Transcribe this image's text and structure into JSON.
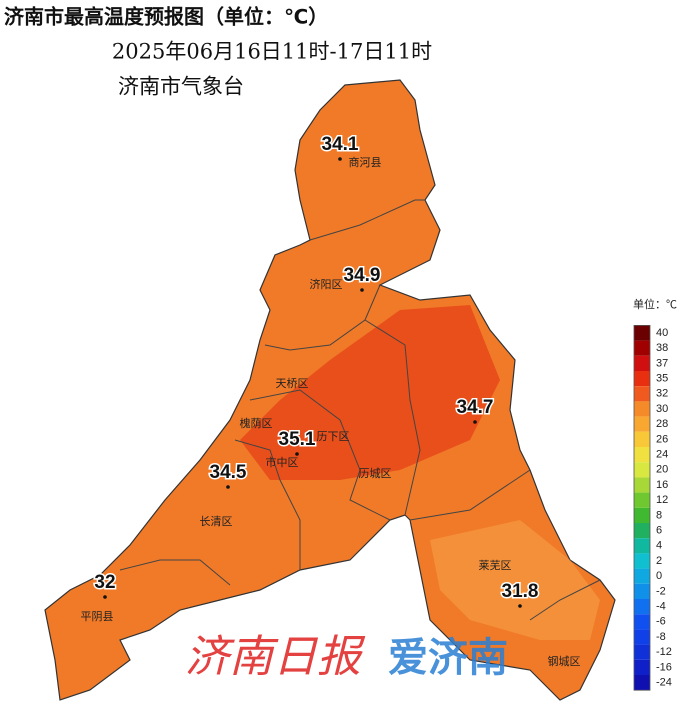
{
  "header": {
    "title": "济南市最高温度预报图（单位：℃）",
    "period": "2025年06月16日11时-17日11时",
    "issuer": "济南市气象台"
  },
  "temperatures": [
    34.1,
    34.9,
    34.7,
    35.1,
    34.5,
    32,
    31.8
  ],
  "place_labels": [
    "商河县",
    "济阳区",
    "天桥区",
    "槐荫区",
    "历下区",
    "市中区",
    "历城区",
    "长清区",
    "平阴县",
    "莱芜区",
    "钢城区"
  ],
  "legend": {
    "unit": "单位：℃",
    "levels": [
      {
        "value": 40,
        "color": "#6b0000"
      },
      {
        "value": 38,
        "color": "#a00000"
      },
      {
        "value": 37,
        "color": "#d01010"
      },
      {
        "value": 35,
        "color": "#e83010"
      },
      {
        "value": 32,
        "color": "#f05a1e"
      },
      {
        "value": 30,
        "color": "#f58a28"
      },
      {
        "value": 28,
        "color": "#f8a830"
      },
      {
        "value": 26,
        "color": "#f8c838"
      },
      {
        "value": 24,
        "color": "#f0e040"
      },
      {
        "value": 20,
        "color": "#d8e840"
      },
      {
        "value": 16,
        "color": "#a8d838"
      },
      {
        "value": 12,
        "color": "#70c830"
      },
      {
        "value": 8,
        "color": "#40b830"
      },
      {
        "value": 6,
        "color": "#20b060"
      },
      {
        "value": 4,
        "color": "#10b8a0"
      },
      {
        "value": 2,
        "color": "#10c0d0"
      },
      {
        "value": 0,
        "color": "#10a8e0"
      },
      {
        "value": -2,
        "color": "#1090e8"
      },
      {
        "value": -4,
        "color": "#1070f0"
      },
      {
        "value": -6,
        "color": "#1050f0"
      },
      {
        "value": -8,
        "color": "#1040e8"
      },
      {
        "value": -12,
        "color": "#1030d8"
      },
      {
        "value": -16,
        "color": "#1020c8"
      },
      {
        "value": -24,
        "color": "#1010b0"
      }
    ]
  },
  "watermark": {
    "paper": "济南日报",
    "app": "爱济南"
  }
}
